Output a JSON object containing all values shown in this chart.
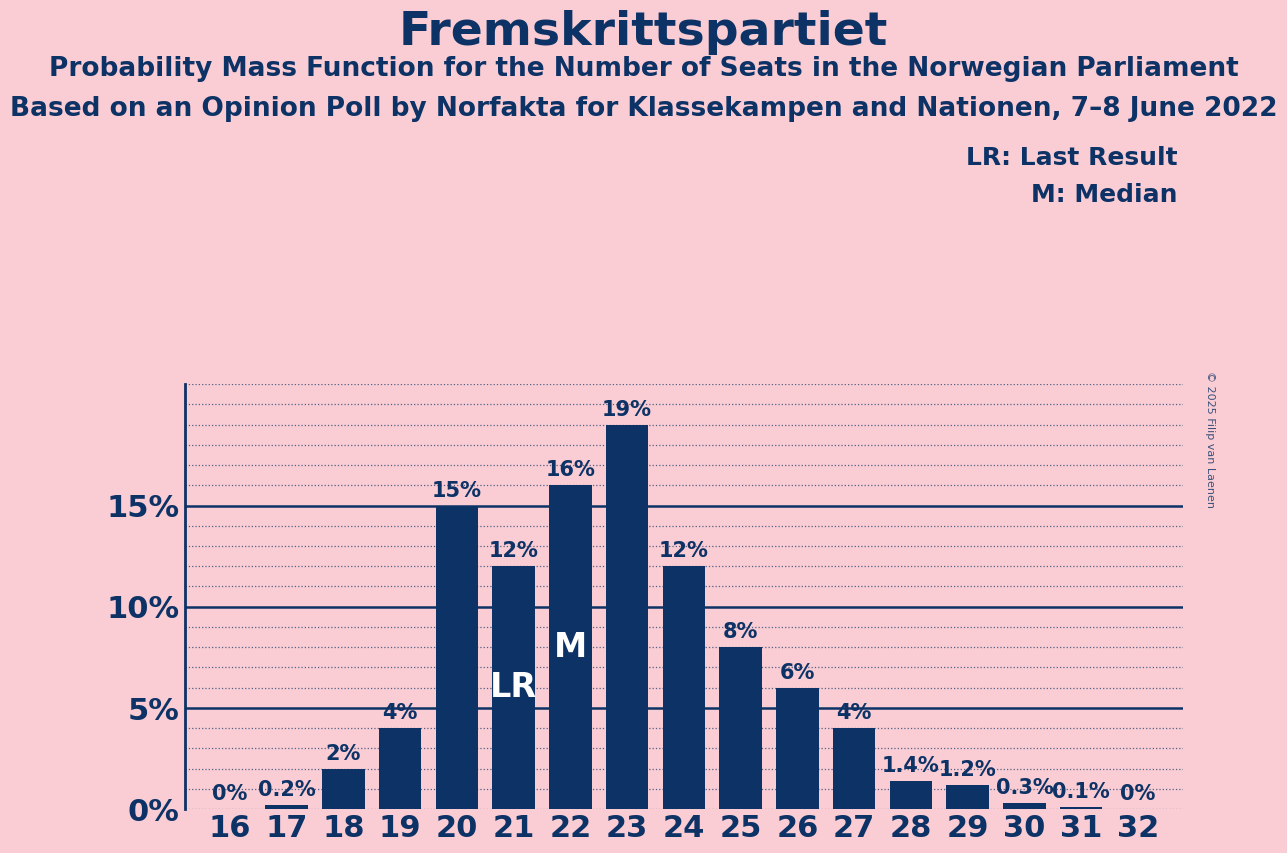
{
  "title": "Fremskrittspartiet",
  "subtitle1": "Probability Mass Function for the Number of Seats in the Norwegian Parliament",
  "subtitle2": "Based on an Opinion Poll by Norfakta for Klassekampen and Nationen, 7–8 June 2022",
  "copyright": "© 2025 Filip van Laenen",
  "seats": [
    16,
    17,
    18,
    19,
    20,
    21,
    22,
    23,
    24,
    25,
    26,
    27,
    28,
    29,
    30,
    31,
    32
  ],
  "probabilities": [
    0.0,
    0.2,
    2.0,
    4.0,
    15.0,
    12.0,
    16.0,
    19.0,
    12.0,
    8.0,
    6.0,
    4.0,
    1.4,
    1.2,
    0.3,
    0.1,
    0.0
  ],
  "bar_color": "#0d3266",
  "background_color": "#f9cdd3",
  "text_color": "#0d3266",
  "lr_seat": 21,
  "median_seat": 22,
  "ylim_max": 21,
  "legend_lr": "LR: Last Result",
  "legend_m": "M: Median",
  "title_fontsize": 34,
  "subtitle_fontsize": 19,
  "tick_fontsize": 22,
  "bar_label_fontsize": 15,
  "annotation_fontsize": 24,
  "legend_fontsize": 18,
  "copyright_fontsize": 8
}
